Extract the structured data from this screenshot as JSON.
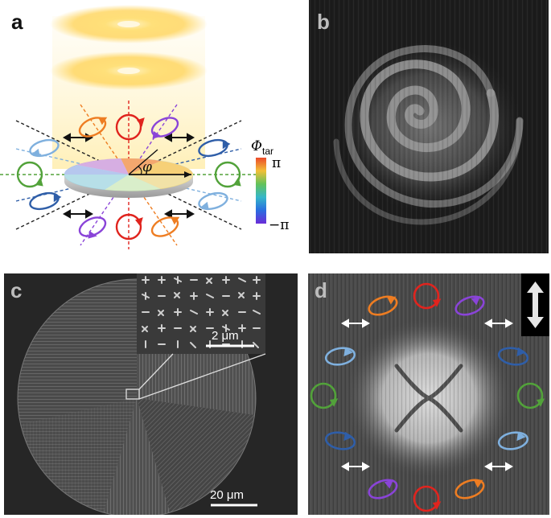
{
  "figure": {
    "panel_labels": {
      "a": "a",
      "b": "b",
      "c": "c",
      "d": "d"
    },
    "panel_a": {
      "colorbar_title_main": "Φ",
      "colorbar_title_sub": "tar",
      "colorbar_max": "π",
      "colorbar_min": "−π",
      "angle_symbol": "φ",
      "colors": {
        "red": "#e0241e",
        "orange": "#ee7d22",
        "purple": "#8a44d8",
        "dark_blue": "#2f5ea8",
        "light_blue": "#7fb0de",
        "green": "#52a23a",
        "beam": "#ffd45a"
      }
    },
    "panel_c": {
      "inset_scale": "2 μm",
      "main_scale": "20 μm"
    },
    "panel_d": {
      "colors": {
        "red": "#e0241e",
        "orange": "#ee7d22",
        "purple": "#8a44d8",
        "dark_blue": "#2f5ea8",
        "light_blue": "#7fb0de",
        "green": "#52a23a",
        "arrow": "#ffffff"
      }
    }
  }
}
